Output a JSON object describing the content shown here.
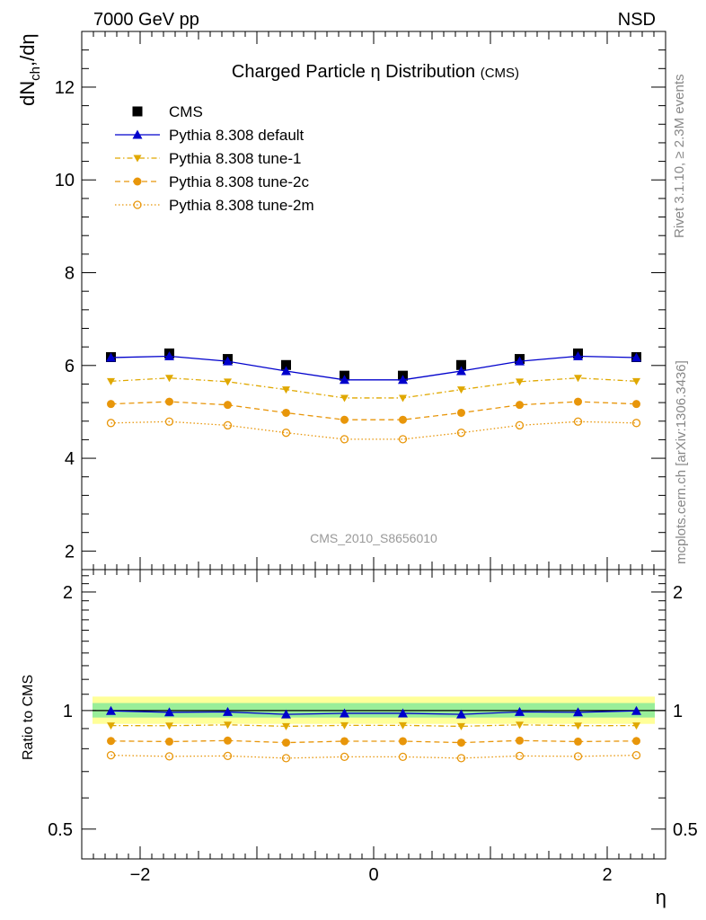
{
  "header": {
    "energy_label": "7000 GeV pp",
    "process_label": "NSD",
    "rivet_label": "Rivet 3.1.10, ≥ 2.3M events",
    "mcplots_label": "mcplots.cern.ch [arXiv:1306.3436]",
    "analysis_id": "CMS_2010_S8656010"
  },
  "chart_data": [
    {
      "type": "line",
      "title": "Charged Particle η Distribution",
      "title_suffix": "(CMS)",
      "ylabel": "dN_ch/dη",
      "xlim": [
        -2.5,
        2.5
      ],
      "ylim": [
        1.6,
        13.2
      ],
      "yticks": [
        2,
        4,
        6,
        8,
        10,
        12
      ],
      "legend_position": "top-left",
      "x": [
        -2.25,
        -1.75,
        -1.25,
        -0.75,
        -0.25,
        0.25,
        0.75,
        1.25,
        1.75,
        2.25
      ],
      "series": [
        {
          "name": "CMS",
          "color": "#000000",
          "marker": "square",
          "line": "none",
          "values": [
            6.18,
            6.26,
            6.14,
            6.01,
            5.78,
            5.78,
            6.01,
            6.14,
            6.26,
            6.18
          ]
        },
        {
          "name": "Pythia 8.308 default",
          "color": "#0000cc",
          "marker": "triangle-up",
          "line": "solid",
          "values": [
            6.17,
            6.2,
            6.09,
            5.88,
            5.69,
            5.69,
            5.88,
            6.09,
            6.2,
            6.17
          ]
        },
        {
          "name": "Pythia 8.308 tune-1",
          "color": "#e0a800",
          "marker": "triangle-down",
          "line": "dashdot",
          "values": [
            5.66,
            5.73,
            5.65,
            5.48,
            5.3,
            5.3,
            5.48,
            5.65,
            5.73,
            5.66
          ]
        },
        {
          "name": "Pythia 8.308 tune-2c",
          "color": "#e8960a",
          "marker": "circle",
          "line": "dashed",
          "values": [
            5.17,
            5.22,
            5.15,
            4.98,
            4.83,
            4.83,
            4.98,
            5.15,
            5.22,
            5.17
          ]
        },
        {
          "name": "Pythia 8.308 tune-2m",
          "color": "#e8960a",
          "marker": "circle-open",
          "line": "dotted",
          "values": [
            4.76,
            4.79,
            4.71,
            4.55,
            4.41,
            4.41,
            4.55,
            4.71,
            4.79,
            4.76
          ]
        }
      ]
    },
    {
      "type": "line",
      "ylabel": "Ratio to CMS",
      "xlabel": "η",
      "xlim": [
        -2.5,
        2.5
      ],
      "ylim": [
        0.42,
        2.28
      ],
      "ytick_labels": [
        "0.5",
        "1",
        "2"
      ],
      "xtick_labels": [
        "−2",
        "0",
        "2"
      ],
      "band_colors": {
        "inner": "#99ee99",
        "outer": "#ffff99"
      },
      "x": [
        -2.25,
        -1.75,
        -1.25,
        -0.75,
        -0.25,
        0.25,
        0.75,
        1.25,
        1.75,
        2.25
      ],
      "series": [
        {
          "name": "Pythia 8.308 default",
          "values": [
            0.998,
            0.99,
            0.992,
            0.978,
            0.984,
            0.984,
            0.978,
            0.992,
            0.99,
            0.998
          ]
        },
        {
          "name": "Pythia 8.308 tune-1",
          "values": [
            0.916,
            0.915,
            0.92,
            0.912,
            0.917,
            0.917,
            0.912,
            0.92,
            0.915,
            0.916
          ]
        },
        {
          "name": "Pythia 8.308 tune-2c",
          "values": [
            0.837,
            0.834,
            0.839,
            0.829,
            0.836,
            0.836,
            0.829,
            0.839,
            0.834,
            0.837
          ]
        },
        {
          "name": "Pythia 8.308 tune-2m",
          "values": [
            0.77,
            0.765,
            0.767,
            0.757,
            0.763,
            0.763,
            0.757,
            0.767,
            0.765,
            0.77
          ]
        }
      ]
    }
  ]
}
